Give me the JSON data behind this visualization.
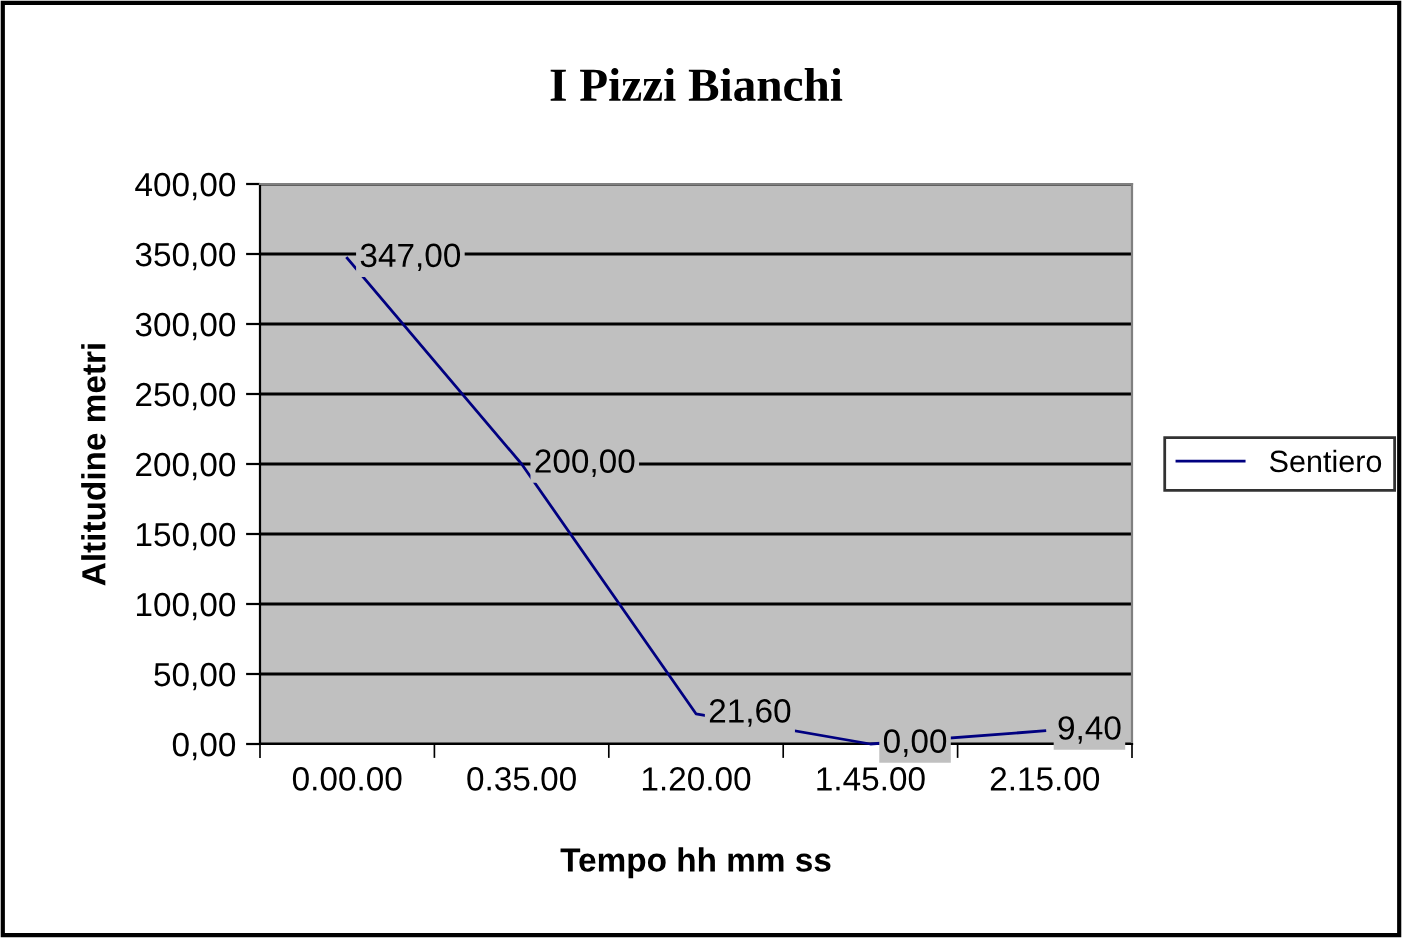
{
  "chart_data": {
    "type": "line",
    "title": "I Pizzi Bianchi",
    "xlabel": "Tempo hh mm ss",
    "ylabel": "Altitudine metri",
    "categories": [
      "0.00.00",
      "0.35.00",
      "1.20.00",
      "1.45.00",
      "2.15.00"
    ],
    "series": [
      {
        "name": "Sentiero",
        "color": "#000080",
        "values": [
          347,
          200,
          21.6,
          0,
          9.4
        ],
        "value_labels": [
          "347,00",
          "200,00",
          "21,60",
          "0,00",
          "9,40"
        ]
      }
    ],
    "ylim": [
      0,
      400
    ],
    "yticks": [
      {
        "value": 0,
        "label": "0,00"
      },
      {
        "value": 50,
        "label": "50,00"
      },
      {
        "value": 100,
        "label": "100,00"
      },
      {
        "value": 150,
        "label": "150,00"
      },
      {
        "value": 200,
        "label": "200,00"
      },
      {
        "value": 250,
        "label": "250,00"
      },
      {
        "value": 300,
        "label": "300,00"
      },
      {
        "value": 350,
        "label": "350,00"
      },
      {
        "value": 400,
        "label": "400,00"
      }
    ],
    "grid": "y",
    "legend": "right",
    "marker": "none",
    "line_style": "solid"
  }
}
